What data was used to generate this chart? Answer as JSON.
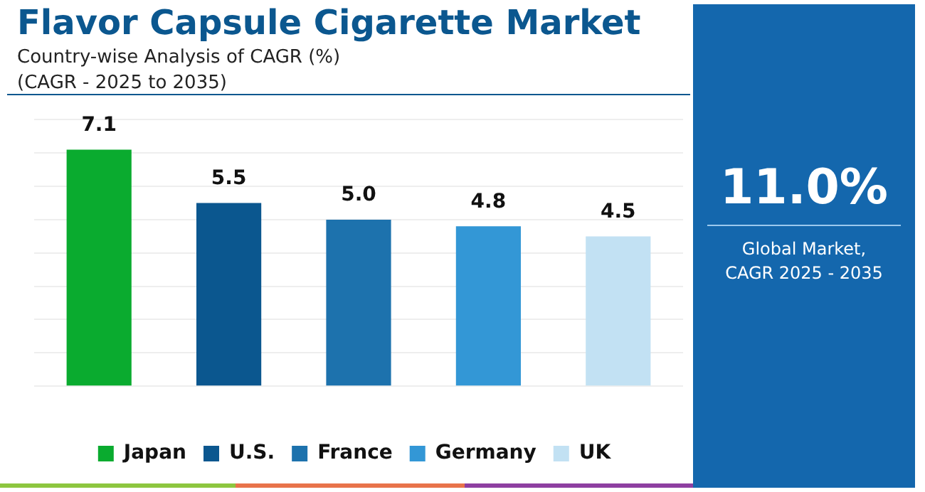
{
  "chart_data": {
    "type": "bar",
    "title": "Flavor Capsule Cigarette Market",
    "subtitle": "Country-wise Analysis of CAGR (%)\n(CAGR - 2025 to 2035)",
    "categories": [
      null,
      null,
      null,
      null,
      null
    ],
    "series": [
      {
        "name": "Japan",
        "color": "#0aab2f",
        "values": [
          7.1,
          null,
          null,
          null,
          null
        ],
        "value_labels": [
          "7.1",
          null,
          null,
          null,
          null
        ]
      },
      {
        "name": "U.S.",
        "color": "#0b578f",
        "values": [
          null,
          5.5,
          null,
          null,
          null
        ],
        "value_labels": [
          null,
          "5.5",
          null,
          null,
          null
        ]
      },
      {
        "name": "France",
        "color": "#1d72ad",
        "values": [
          null,
          null,
          5.0,
          null,
          null
        ],
        "value_labels": [
          null,
          null,
          "5.0",
          null,
          null
        ]
      },
      {
        "name": "Germany",
        "color": "#3397d6",
        "values": [
          null,
          null,
          null,
          4.8,
          null
        ],
        "value_labels": [
          null,
          null,
          null,
          "4.8",
          null
        ]
      },
      {
        "name": "UK",
        "color": "#c2e1f3",
        "values": [
          null,
          null,
          null,
          null,
          4.5
        ],
        "value_labels": [
          null,
          null,
          null,
          null,
          "4.5"
        ]
      }
    ],
    "stacked": true,
    "ylim": [
      0,
      8
    ],
    "yticks": [
      {
        "value": 0,
        "label": null
      },
      {
        "value": 1,
        "label": null
      },
      {
        "value": 2,
        "label": null
      },
      {
        "value": 3,
        "label": null
      },
      {
        "value": 4,
        "label": null
      },
      {
        "value": 5,
        "label": null
      },
      {
        "value": 6,
        "label": null
      },
      {
        "value": 7,
        "label": null
      },
      {
        "value": 8,
        "label": null
      }
    ],
    "grid": "y",
    "legend": "bottom",
    "annotations": [
      "11.0%",
      "Global Market,\nCAGR 2025 - 2035"
    ]
  }
}
